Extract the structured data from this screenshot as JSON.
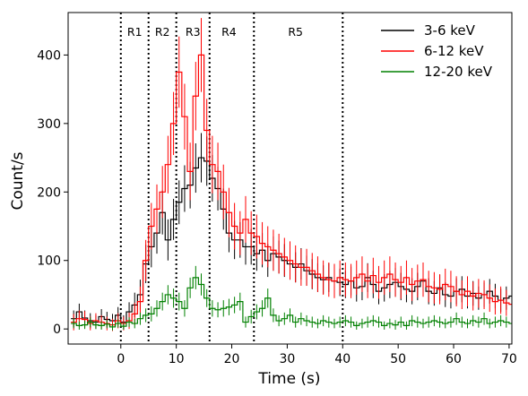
{
  "chart_data": {
    "type": "line",
    "xlabel": "Time (s)",
    "ylabel": "Count/s",
    "xlim": [
      -9.5,
      70.5
    ],
    "ylim": [
      -22,
      462
    ],
    "x_ticks": [
      0,
      10,
      20,
      30,
      40,
      50,
      60,
      70
    ],
    "y_ticks": [
      0,
      100,
      200,
      300,
      400
    ],
    "grid": false,
    "legend_position": "top-right",
    "region_boundaries": [
      0,
      5,
      10,
      16,
      24,
      40
    ],
    "regions": [
      {
        "label": "R1",
        "x": 2.5
      },
      {
        "label": "R2",
        "x": 7.5
      },
      {
        "label": "R3",
        "x": 13
      },
      {
        "label": "R4",
        "x": 19.5
      },
      {
        "label": "R5",
        "x": 31.5
      }
    ],
    "bin_start": -9,
    "bin_width": 1,
    "series": [
      {
        "name": "3-6 keV",
        "color": "#000000",
        "values": [
          15,
          25,
          16,
          12,
          10,
          18,
          14,
          12,
          20,
          10,
          25,
          35,
          50,
          95,
          120,
          140,
          170,
          130,
          160,
          185,
          205,
          210,
          235,
          250,
          245,
          220,
          205,
          175,
          140,
          130,
          130,
          120,
          120,
          110,
          115,
          100,
          110,
          105,
          100,
          95,
          90,
          95,
          85,
          80,
          75,
          72,
          75,
          70,
          68,
          65,
          70,
          60,
          62,
          75,
          65,
          55,
          60,
          65,
          68,
          62,
          58,
          55,
          62,
          70,
          55,
          52,
          60,
          50,
          48,
          55,
          58,
          48,
          52,
          45,
          50,
          55,
          48,
          42,
          45,
          48
        ],
        "errors": [
          12,
          12,
          11,
          11,
          10,
          11,
          11,
          10,
          12,
          10,
          14,
          18,
          22,
          28,
          30,
          30,
          32,
          30,
          30,
          32,
          34,
          34,
          36,
          36,
          36,
          34,
          32,
          30,
          28,
          28,
          26,
          26,
          26,
          25,
          25,
          24,
          25,
          24,
          24,
          23,
          22,
          23,
          22,
          22,
          21,
          21,
          21,
          20,
          20,
          20,
          21,
          20,
          20,
          21,
          20,
          19,
          20,
          20,
          21,
          20,
          19,
          19,
          20,
          21,
          19,
          18,
          19,
          18,
          18,
          19,
          19,
          18,
          18,
          17,
          18,
          18,
          18,
          17,
          17,
          18
        ]
      },
      {
        "name": "6-12 keV",
        "color": "#ff0000",
        "values": [
          10,
          15,
          14,
          8,
          12,
          10,
          8,
          6,
          12,
          8,
          12,
          22,
          40,
          100,
          150,
          175,
          200,
          240,
          300,
          375,
          310,
          230,
          340,
          400,
          290,
          240,
          230,
          200,
          170,
          150,
          140,
          160,
          140,
          135,
          125,
          120,
          115,
          110,
          105,
          100,
          95,
          90,
          90,
          85,
          80,
          75,
          72,
          70,
          75,
          72,
          70,
          75,
          80,
          70,
          78,
          68,
          75,
          80,
          72,
          68,
          75,
          65,
          70,
          72,
          62,
          60,
          58,
          65,
          62,
          55,
          50,
          55,
          48,
          52,
          50,
          45,
          40,
          42,
          38,
          36
        ],
        "errors": [
          12,
          12,
          12,
          10,
          11,
          10,
          10,
          9,
          11,
          10,
          12,
          16,
          22,
          30,
          34,
          36,
          38,
          42,
          46,
          52,
          48,
          42,
          50,
          54,
          46,
          42,
          42,
          40,
          36,
          34,
          32,
          34,
          32,
          32,
          31,
          30,
          30,
          29,
          28,
          28,
          27,
          27,
          27,
          26,
          26,
          25,
          25,
          25,
          25,
          25,
          25,
          25,
          26,
          25,
          26,
          24,
          25,
          26,
          25,
          24,
          25,
          24,
          24,
          25,
          23,
          23,
          22,
          23,
          23,
          22,
          21,
          22,
          21,
          21,
          21,
          20,
          19,
          20,
          19,
          19
        ]
      },
      {
        "name": "12-20 keV",
        "color": "#008000",
        "values": [
          8,
          5,
          6,
          10,
          6,
          5,
          7,
          3,
          8,
          4,
          10,
          8,
          15,
          20,
          22,
          30,
          40,
          50,
          45,
          40,
          30,
          60,
          75,
          65,
          45,
          30,
          28,
          30,
          32,
          35,
          40,
          10,
          18,
          25,
          30,
          45,
          20,
          12,
          15,
          20,
          10,
          15,
          12,
          10,
          8,
          12,
          10,
          8,
          10,
          12,
          10,
          5,
          8,
          10,
          12,
          10,
          5,
          8,
          6,
          10,
          5,
          12,
          10,
          8,
          10,
          12,
          10,
          8,
          10,
          15,
          10,
          8,
          12,
          10,
          15,
          8,
          10,
          12,
          10,
          8
        ],
        "errors": [
          7,
          6,
          6,
          7,
          6,
          6,
          6,
          5,
          6,
          5,
          7,
          7,
          9,
          10,
          11,
          12,
          13,
          14,
          14,
          13,
          12,
          15,
          17,
          16,
          13,
          12,
          11,
          12,
          12,
          12,
          13,
          8,
          10,
          11,
          12,
          14,
          10,
          8,
          9,
          10,
          8,
          9,
          8,
          8,
          7,
          8,
          8,
          7,
          8,
          8,
          8,
          6,
          7,
          8,
          8,
          8,
          6,
          7,
          7,
          8,
          6,
          8,
          8,
          7,
          8,
          8,
          8,
          7,
          8,
          9,
          8,
          7,
          8,
          8,
          9,
          7,
          8,
          8,
          8,
          7
        ]
      }
    ]
  }
}
